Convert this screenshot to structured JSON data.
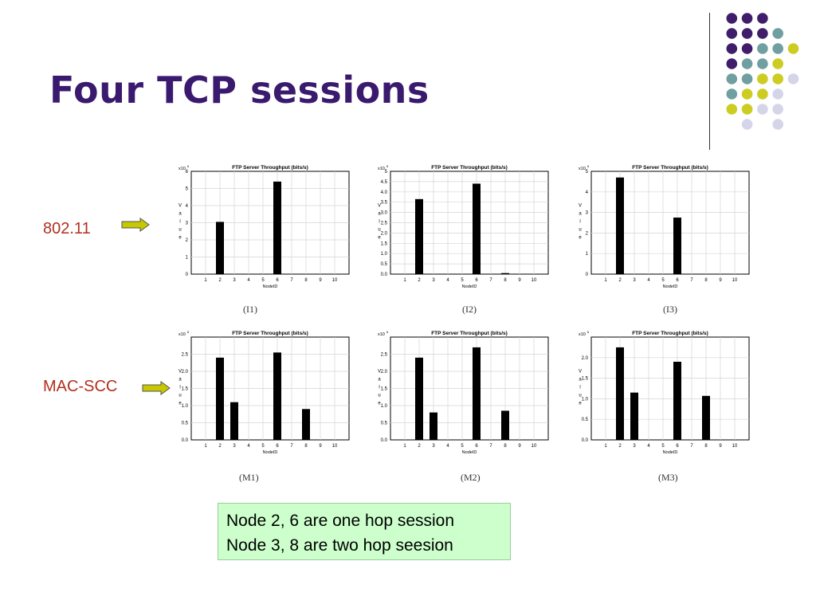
{
  "slide": {
    "title": "Four TCP sessions",
    "row_labels": [
      "802.11",
      "MAC-SCC"
    ],
    "note_lines": [
      "Node 2, 6 are one hop session",
      "Node 3, 8 are two hop seesion"
    ],
    "colors": {
      "title": "#3a1a6e",
      "row_label": "#b03020",
      "arrow_fill": "#c8c800",
      "note_bg": "#ccffcc",
      "dot_purple": "#3f1d6b",
      "dot_teal": "#6f9fa0",
      "dot_yellow": "#cccc22",
      "dot_lavender": "#d5d5ea"
    },
    "icons": [
      "right-arrow-icon",
      "decorative-dot-grid"
    ]
  },
  "chart_data": [
    {
      "id": "I1",
      "type": "bar",
      "title": "FTP Server   Throughput (bits/s)",
      "exponent": "x10",
      "exponent_power": "6",
      "xlabel": "NodeID",
      "ylabel_letters": [
        "V",
        "a",
        "l",
        "u",
        "e"
      ],
      "caption": "(I1)",
      "categories": [
        "1",
        "2",
        "3",
        "4",
        "5",
        "6",
        "7",
        "8",
        "9",
        "10"
      ],
      "values": [
        0,
        3.05,
        0,
        0,
        0,
        5.4,
        0,
        0,
        0,
        0
      ],
      "ylim": [
        0,
        6
      ],
      "yticks": [
        "0",
        "1",
        "2",
        "3",
        "4",
        "5",
        "6"
      ],
      "grid": true
    },
    {
      "id": "I2",
      "type": "bar",
      "title": "FTP Server   Throughput (bits/s)",
      "exponent": "x10",
      "exponent_power": "6",
      "xlabel": "NodeID",
      "ylabel_letters": [
        "V",
        "a",
        "l",
        "u",
        "e"
      ],
      "caption": "(I2)",
      "categories": [
        "1",
        "2",
        "3",
        "4",
        "5",
        "6",
        "7",
        "8",
        "9",
        "10"
      ],
      "values": [
        0,
        3.65,
        0,
        0,
        0,
        4.4,
        0,
        0.05,
        0,
        0
      ],
      "ylim": [
        0,
        5
      ],
      "yticks": [
        "0.0",
        "0.5",
        "1.0",
        "1.5",
        "2.0",
        "2.5",
        "3.0",
        "3.5",
        "4.0",
        "4.5",
        "5"
      ],
      "grid": true
    },
    {
      "id": "I3",
      "type": "bar",
      "title": "FTP Server   Throughput (bits/s)",
      "exponent": "x10",
      "exponent_power": "6",
      "xlabel": "NodeID",
      "ylabel_letters": [
        "V",
        "a",
        "l",
        "u",
        "e"
      ],
      "caption": "(I3)",
      "categories": [
        "1",
        "2",
        "3",
        "4",
        "5",
        "6",
        "7",
        "8",
        "9",
        "10"
      ],
      "values": [
        0,
        4.7,
        0,
        0,
        0,
        2.75,
        0,
        0,
        0,
        0
      ],
      "ylim": [
        0,
        5
      ],
      "yticks": [
        "0",
        "1",
        "2",
        "3",
        "4",
        "5"
      ],
      "grid": true
    },
    {
      "id": "M1",
      "type": "bar",
      "title": "FTP Server   Throughput (bits/s)",
      "exponent": "x10",
      "exponent_power": "6",
      "xlabel": "NodeID",
      "ylabel_letters": [
        "V",
        "a",
        "l",
        "u",
        "e"
      ],
      "caption": "(M1)",
      "categories": [
        "1",
        "2",
        "3",
        "4",
        "5",
        "6",
        "7",
        "8",
        "9",
        "10"
      ],
      "values": [
        0,
        2.4,
        1.1,
        0,
        0,
        2.55,
        0,
        0.9,
        0,
        0
      ],
      "ylim": [
        0,
        3
      ],
      "yticks": [
        "0.0",
        "0.5",
        "1.0",
        "1.5",
        "2.0",
        "2.5"
      ],
      "grid": true
    },
    {
      "id": "M2",
      "type": "bar",
      "title": "FTP Server   Throughput (bits/s)",
      "exponent": "x10",
      "exponent_power": "6",
      "xlabel": "NodeID",
      "ylabel_letters": [
        "V",
        "a",
        "l",
        "u",
        "e"
      ],
      "caption": "(M2)",
      "categories": [
        "1",
        "2",
        "3",
        "4",
        "5",
        "6",
        "7",
        "8",
        "9",
        "10"
      ],
      "values": [
        0,
        2.4,
        0.8,
        0,
        0,
        2.7,
        0,
        0.85,
        0,
        0
      ],
      "ylim": [
        0,
        3
      ],
      "yticks": [
        "0.0",
        "0.5",
        "1.0",
        "1.5",
        "2.0",
        "2.5"
      ],
      "grid": true
    },
    {
      "id": "M3",
      "type": "bar",
      "title": "FTP Server   Throughput (bits/s)",
      "exponent": "x10",
      "exponent_power": "6",
      "xlabel": "NodeID",
      "ylabel_letters": [
        "V",
        "a",
        "l",
        "u",
        "e"
      ],
      "caption": "(M3)",
      "categories": [
        "1",
        "2",
        "3",
        "4",
        "5",
        "6",
        "7",
        "8",
        "9",
        "10"
      ],
      "values": [
        0,
        2.25,
        1.15,
        0,
        0,
        1.9,
        0,
        1.07,
        0,
        0
      ],
      "ylim": [
        0,
        2.5
      ],
      "yticks": [
        "0.0",
        "0.5",
        "1.0",
        "1.5",
        "2.0"
      ],
      "grid": true
    }
  ]
}
